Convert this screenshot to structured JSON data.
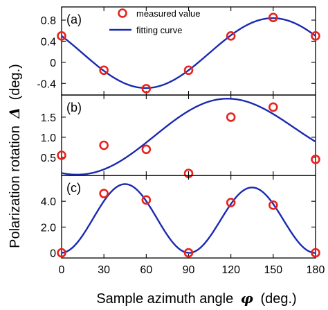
{
  "chart_data": {
    "type": "scatter",
    "x_axis": {
      "label_prefix": "Sample azimuth angle",
      "label_symbol": "φ",
      "label_suffix": "(deg.)",
      "range": [
        0,
        180
      ],
      "ticks": [
        0,
        30,
        60,
        90,
        120,
        150,
        180
      ],
      "tick_labels": [
        "0",
        "30",
        "60",
        "90",
        "120",
        "150",
        "180"
      ]
    },
    "y_axis": {
      "label_prefix": "Polarization rotation",
      "label_symbol": "Δ",
      "label_suffix": "(deg.)"
    },
    "legend": {
      "placement": "top-center",
      "entries": [
        {
          "label": "measured value",
          "kind": "marker"
        },
        {
          "label": "fitting curve",
          "kind": "line"
        }
      ]
    },
    "colors": {
      "marker": "#e8221c",
      "fit": "#1a2ab0",
      "axes": "#000000"
    },
    "panels": [
      {
        "label": "(a)",
        "ylim": [
          -0.62,
          1.05
        ],
        "yticks": [
          -0.4,
          0,
          0.4,
          0.8
        ],
        "ytick_labels": [
          "-0.4",
          "0",
          "0.4",
          "0.8"
        ],
        "measured": {
          "x": [
            0,
            30,
            60,
            90,
            120,
            150,
            180
          ],
          "y": [
            0.5,
            -0.15,
            -0.5,
            -0.15,
            0.5,
            0.85,
            0.5
          ]
        },
        "fit": {
          "c": 0.175,
          "a1": 0,
          "b1": 0,
          "a2": 0.325,
          "b2": -0.577,
          "a4": 0,
          "b4": 0
        }
      },
      {
        "label": "(b)",
        "ylim": [
          0.05,
          2.05
        ],
        "yticks": [
          0.5,
          1.0,
          1.5
        ],
        "ytick_labels": [
          "0.5",
          "1.0",
          "1.5"
        ],
        "measured": {
          "x": [
            0,
            30,
            60,
            90,
            120,
            150,
            180
          ],
          "y": [
            0.55,
            0.8,
            0.7,
            0.1,
            1.5,
            1.75,
            0.45
          ]
        },
        "fit": {
          "c": 0.875,
          "a1": -0.39,
          "b1": 0.404,
          "a2": -0.375,
          "b2": -0.404,
          "a4": 0,
          "b4": 0
        }
      },
      {
        "label": "(c)",
        "ylim": [
          -0.4,
          6.0
        ],
        "yticks": [
          0,
          2.0,
          4.0
        ],
        "ytick_labels": [
          "0",
          "2.0",
          "4.0"
        ],
        "measured": {
          "x": [
            0,
            30,
            60,
            90,
            120,
            150,
            180
          ],
          "y": [
            0,
            4.6,
            4.1,
            0,
            3.9,
            3.7,
            0
          ]
        },
        "fit": {
          "c": 2.6,
          "a1": 0,
          "b1": 0,
          "a2": 0,
          "b2": 0.13,
          "a4": -2.6,
          "b4": 0
        }
      }
    ]
  }
}
